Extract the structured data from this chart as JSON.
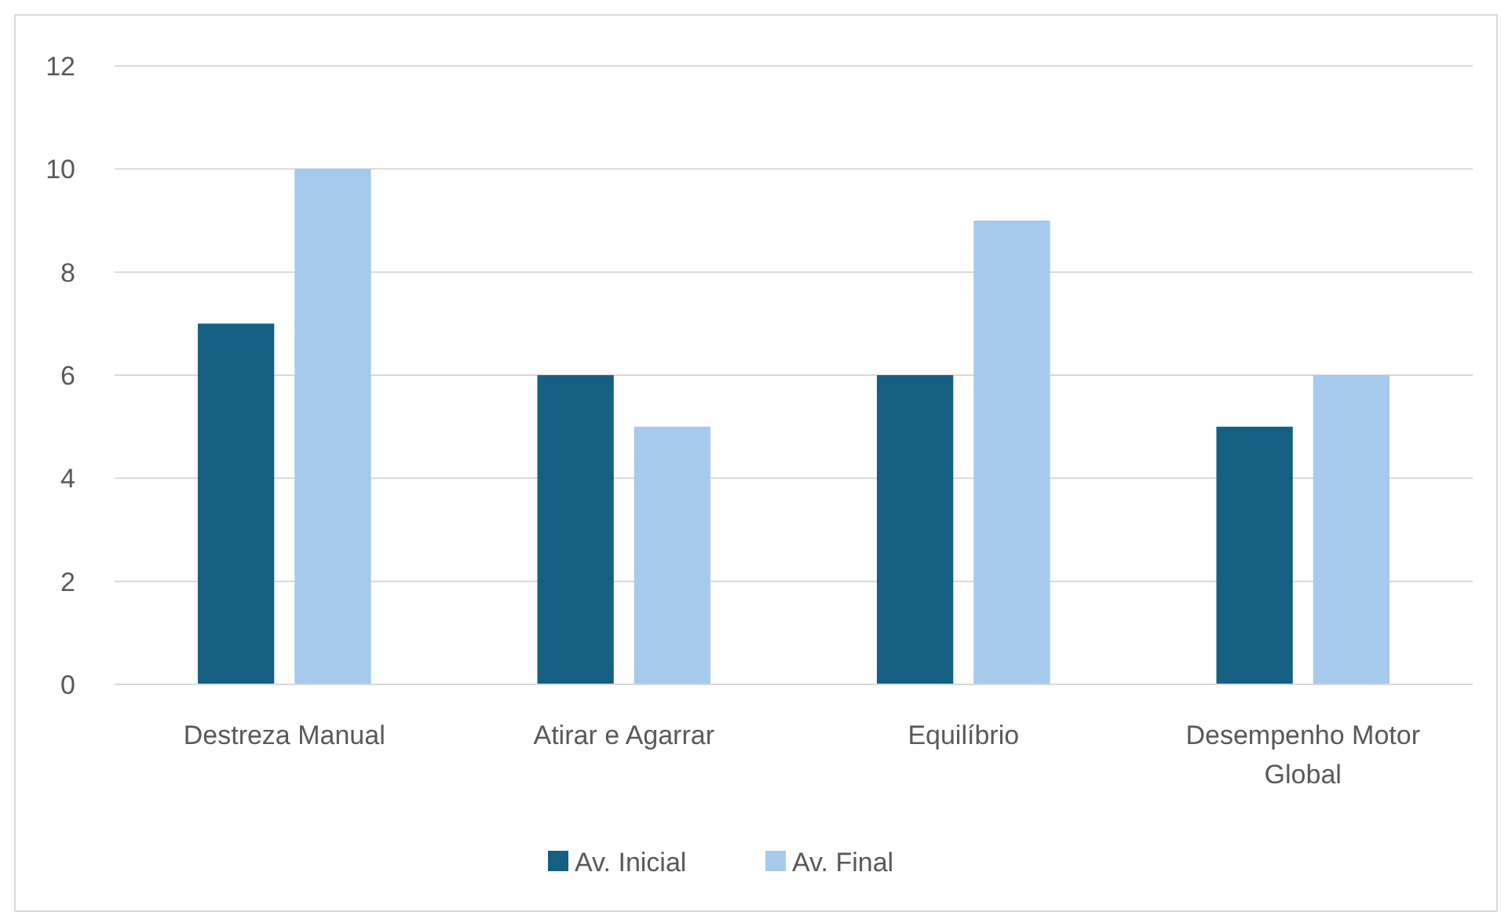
{
  "chart_data": {
    "type": "bar",
    "categories": [
      "Destreza Manual",
      "Atirar e Agarrar",
      "Equilíbrio",
      "Desempenho Motor Global"
    ],
    "series": [
      {
        "name": "Av. Inicial",
        "color": "#156082",
        "values": [
          7,
          6,
          6,
          5
        ]
      },
      {
        "name": "Av. Final",
        "color": "#a6caec",
        "values": [
          10,
          5,
          9,
          6
        ]
      }
    ],
    "ylim": [
      0,
      12
    ],
    "yticks": [
      0,
      2,
      4,
      6,
      8,
      10,
      12
    ],
    "grid": "y",
    "legend": "bottom"
  }
}
